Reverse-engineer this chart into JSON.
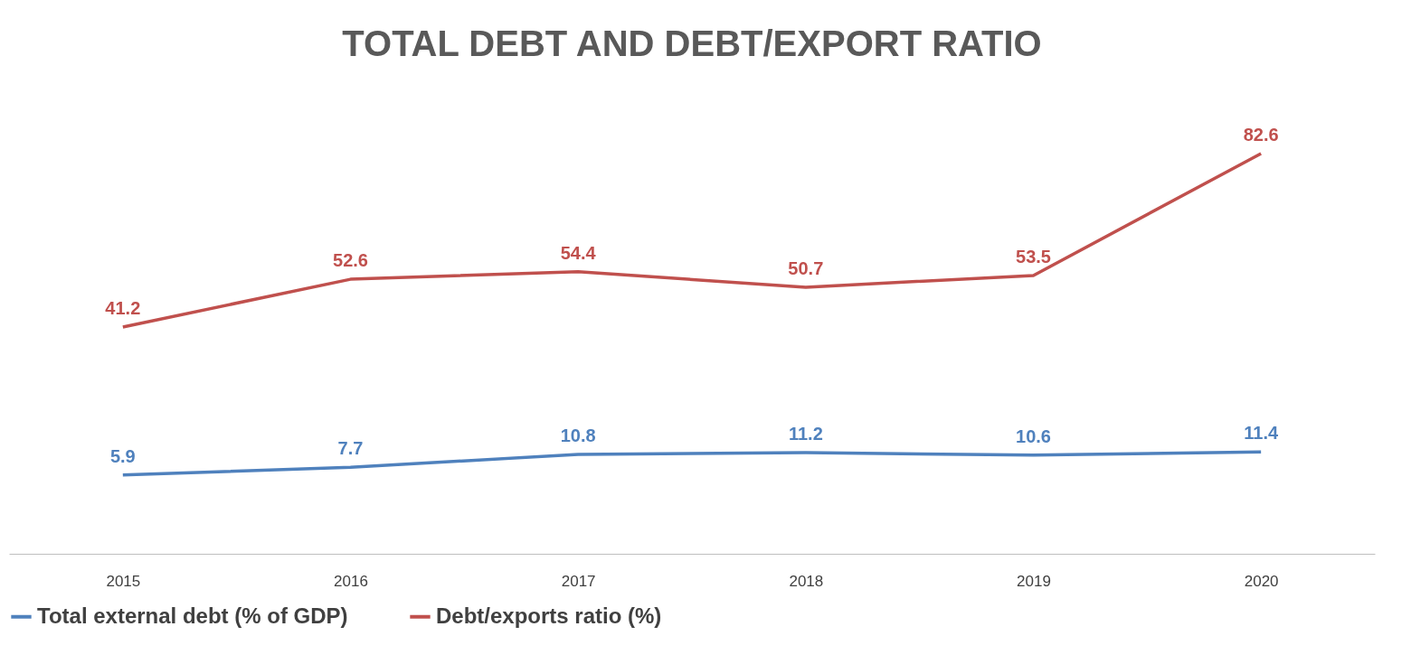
{
  "chart_data": {
    "type": "line",
    "title": "TOTAL DEBT AND DEBT/EXPORT RATIO",
    "categories": [
      "2015",
      "2016",
      "2017",
      "2018",
      "2019",
      "2020"
    ],
    "series": [
      {
        "name": "Total external debt (% of GDP)",
        "color": "#4f81bd",
        "values": [
          5.9,
          7.7,
          10.8,
          11.2,
          10.6,
          11.4
        ]
      },
      {
        "name": "Debt/exports ratio (%)",
        "color": "#c0504d",
        "values": [
          41.2,
          52.6,
          54.4,
          50.7,
          53.5,
          82.6
        ]
      }
    ],
    "data_labels": true,
    "tick_labels": "x",
    "grid": false,
    "legend": "bottom",
    "marker": "none",
    "line_style": "solid"
  }
}
